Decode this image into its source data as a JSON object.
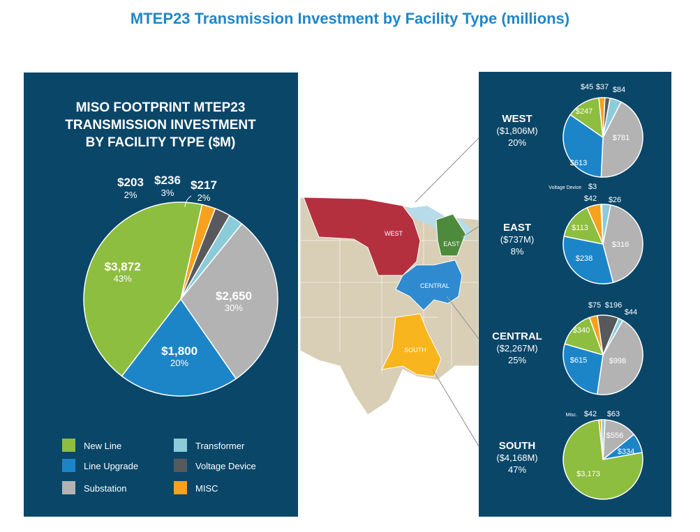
{
  "page_title": "MTEP23 Transmission Investment by Facility Type (millions)",
  "colors": {
    "new_line": "#8dbe3f",
    "line_upgrade": "#1c85c8",
    "substation": "#b3b3b3",
    "transformer": "#8ccbd8",
    "voltage_device": "#57595c",
    "misc": "#f7a11e",
    "panel_bg": "#0a4668",
    "title_blue": "#1f86c8"
  },
  "chart_data": [
    {
      "type": "pie",
      "title": "MISO FOOTPRINT MTEP23 TRANSMISSION INVESTMENT BY FACILITY TYPE ($M)",
      "slices": [
        {
          "name": "Substation",
          "value": 2650,
          "label": "$2,650",
          "pct": "30%"
        },
        {
          "name": "Line Upgrade",
          "value": 1800,
          "label": "$1,800",
          "pct": "20%"
        },
        {
          "name": "New Line",
          "value": 3872,
          "label": "$3,872",
          "pct": "43%"
        },
        {
          "name": "MISC",
          "value": 203,
          "label": "$203",
          "pct": "2%"
        },
        {
          "name": "Voltage Device",
          "value": 236,
          "label": "$236",
          "pct": "3%"
        },
        {
          "name": "Transformer",
          "value": 217,
          "label": "$217",
          "pct": "2%"
        }
      ],
      "legend": [
        "New Line",
        "Transformer",
        "Line Upgrade",
        "Voltage Device",
        "Substation",
        "MISC"
      ]
    },
    {
      "type": "pie",
      "region": "WEST",
      "total": "($1,806M)",
      "pct": "20%",
      "slices": [
        {
          "name": "Substation",
          "value": 781,
          "label": "$781"
        },
        {
          "name": "Line Upgrade",
          "value": 613,
          "label": "$613"
        },
        {
          "name": "New Line",
          "value": 247,
          "label": "$247"
        },
        {
          "name": "MISC",
          "value": 45,
          "label": "$45"
        },
        {
          "name": "Voltage Device",
          "value": 37,
          "label": "$37"
        },
        {
          "name": "Transformer",
          "value": 84,
          "label": "$84"
        }
      ]
    },
    {
      "type": "pie",
      "region": "EAST",
      "total": "($737M)",
      "pct": "8%",
      "slices": [
        {
          "name": "Substation",
          "value": 316,
          "label": "$316"
        },
        {
          "name": "Line Upgrade",
          "value": 238,
          "label": "$238"
        },
        {
          "name": "New Line",
          "value": 113,
          "label": "$113"
        },
        {
          "name": "MISC",
          "value": 42,
          "label": "$42"
        },
        {
          "name": "Voltage Device",
          "value": 3,
          "label": "$3",
          "prefix": "Voltage Device"
        },
        {
          "name": "Transformer",
          "value": 26,
          "label": "$26"
        }
      ]
    },
    {
      "type": "pie",
      "region": "CENTRAL",
      "total": "($2,267M)",
      "pct": "25%",
      "slices": [
        {
          "name": "Substation",
          "value": 998,
          "label": "$998"
        },
        {
          "name": "Line Upgrade",
          "value": 615,
          "label": "$615"
        },
        {
          "name": "New Line",
          "value": 340,
          "label": "$340"
        },
        {
          "name": "MISC",
          "value": 75,
          "label": "$75"
        },
        {
          "name": "Voltage Device",
          "value": 196,
          "label": "$196"
        },
        {
          "name": "Transformer",
          "value": 44,
          "label": "$44"
        }
      ]
    },
    {
      "type": "pie",
      "region": "SOUTH",
      "total": "($4,168M)",
      "pct": "47%",
      "slices": [
        {
          "name": "Substation",
          "value": 556,
          "label": "$556"
        },
        {
          "name": "Line Upgrade",
          "value": 334,
          "label": "$334"
        },
        {
          "name": "New Line",
          "value": 3173,
          "label": "$3,173"
        },
        {
          "name": "MISC",
          "value": 42,
          "label": "$42",
          "prefix": "Misc."
        },
        {
          "name": "Transformer",
          "value": 63,
          "label": "$63"
        }
      ]
    }
  ],
  "map": {
    "labels": [
      "WEST",
      "EAST",
      "CENTRAL",
      "SOUTH"
    ]
  }
}
